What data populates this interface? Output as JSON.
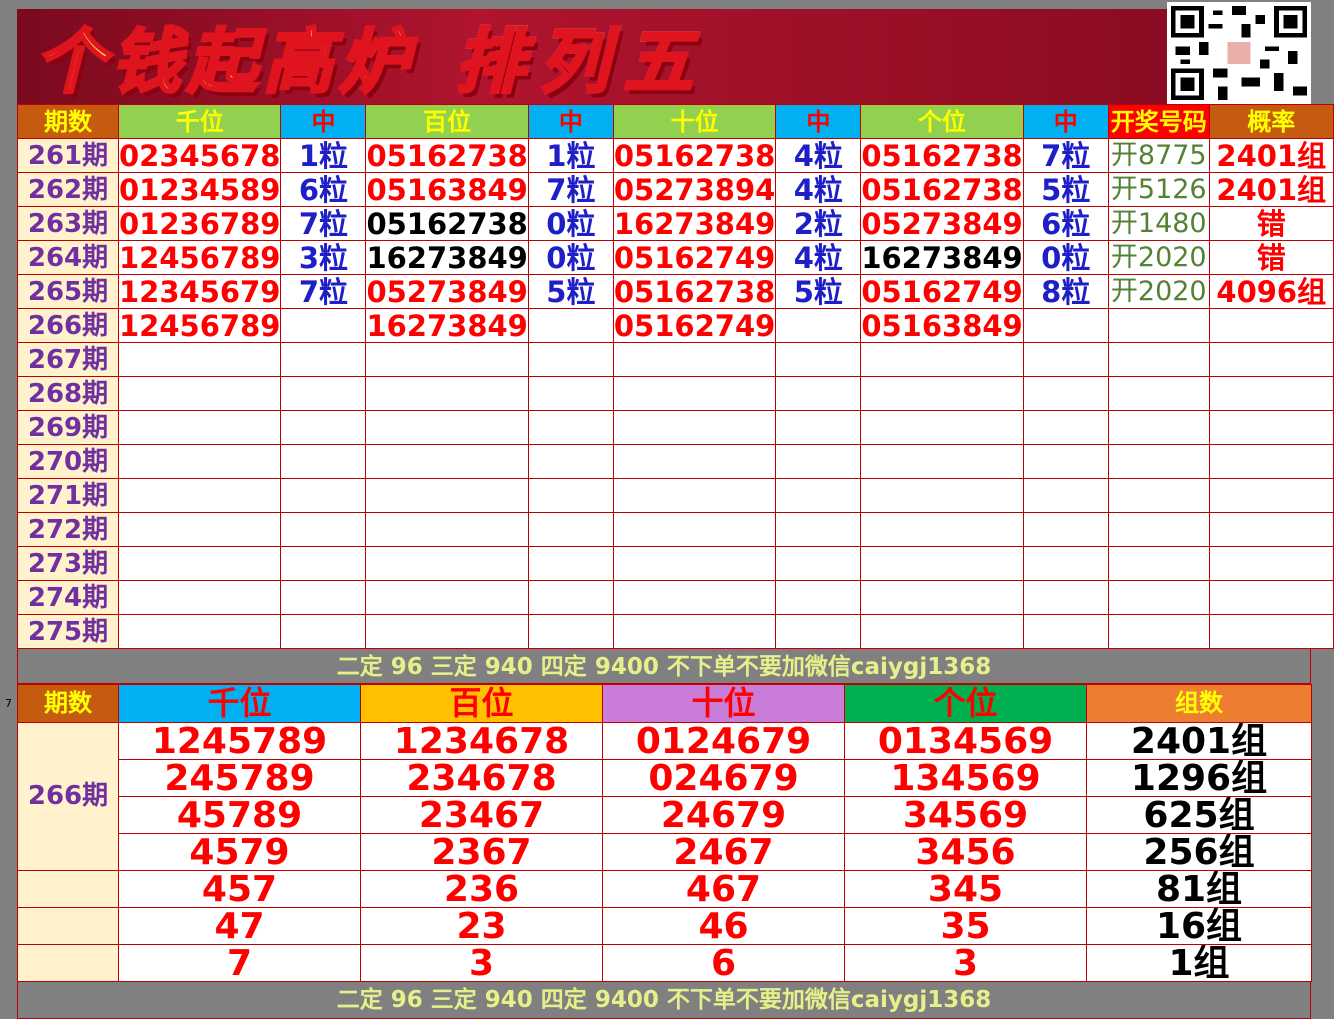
{
  "banner": {
    "left": "个钱起高炉",
    "right": "排列五"
  },
  "qr": "qr-code",
  "table1": {
    "headers": [
      "期数",
      "千位",
      "中",
      "百位",
      "中",
      "十位",
      "中",
      "个位",
      "中",
      "开奖号码",
      "概率"
    ],
    "rows": [
      {
        "period": "261期",
        "cells": [
          "02345678",
          "1粒",
          "05162738",
          "1粒",
          "05162738",
          "4粒",
          "05162738",
          "7粒"
        ],
        "draw": "开8775",
        "prob": "2401组"
      },
      {
        "period": "262期",
        "cells": [
          "01234589",
          "6粒",
          "05163849",
          "7粒",
          "05273894",
          "4粒",
          "05162738",
          "5粒"
        ],
        "draw": "开5126",
        "prob": "2401组"
      },
      {
        "period": "263期",
        "cells": [
          "01236789",
          "7粒",
          "05162738",
          "0粒",
          "16273849",
          "2粒",
          "05273849",
          "6粒"
        ],
        "draw": "开1480",
        "prob": "错"
      },
      {
        "period": "264期",
        "cells": [
          "12456789",
          "3粒",
          "16273849",
          "0粒",
          "05162749",
          "4粒",
          "16273849",
          "0粒"
        ],
        "draw": "开2020",
        "prob": "错"
      },
      {
        "period": "265期",
        "cells": [
          "12345679",
          "7粒",
          "05273849",
          "5粒",
          "05162738",
          "5粒",
          "05162749",
          "8粒"
        ],
        "draw": "开2020",
        "prob": "4096组"
      },
      {
        "period": "266期",
        "cells": [
          "12456789",
          "",
          "16273849",
          "",
          "05162749",
          "",
          "05163849",
          ""
        ],
        "draw": "",
        "prob": ""
      },
      {
        "period": "267期"
      },
      {
        "period": "268期"
      },
      {
        "period": "269期"
      },
      {
        "period": "270期"
      },
      {
        "period": "271期"
      },
      {
        "period": "272期"
      },
      {
        "period": "273期"
      },
      {
        "period": "274期"
      },
      {
        "period": "275期"
      }
    ]
  },
  "note": "二定 96 三定 940 四定 9400 不下单不要加微信caiygj1368",
  "row_number": "7",
  "table2": {
    "headers": [
      "期数",
      "千位",
      "百位",
      "十位",
      "个位",
      "组数"
    ],
    "period": "266期",
    "rows": [
      [
        "1245789",
        "1234678",
        "0124679",
        "0134569",
        "2401组"
      ],
      [
        "245789",
        "234678",
        "024679",
        "134569",
        "1296组"
      ],
      [
        "45789",
        "23467",
        "24679",
        "34569",
        "625组"
      ],
      [
        "4579",
        "2367",
        "2467",
        "3456",
        "256组"
      ],
      [
        "457",
        "236",
        "467",
        "345",
        "81组"
      ],
      [
        "47",
        "23",
        "46",
        "35",
        "16组"
      ],
      [
        "7",
        "3",
        "6",
        "3",
        "1组"
      ]
    ]
  }
}
